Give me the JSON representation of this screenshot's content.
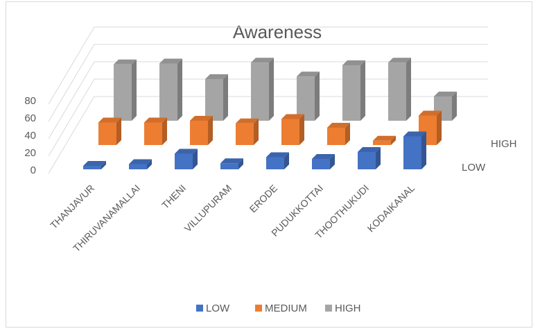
{
  "chart_data": {
    "type": "bar",
    "subtype": "3d-column",
    "title": "Awareness",
    "categories": [
      "THANJAVUR",
      "THIRUVANAMALLAI",
      "THENI",
      "VILLUPURAM",
      "ERODE",
      "PUDUKKOTTAI",
      "THOOTHUKUDI",
      "KODAIKANAL"
    ],
    "series": [
      {
        "name": "LOW",
        "color": "#4472C4",
        "values": [
          4,
          6,
          18,
          7,
          14,
          12,
          20,
          38
        ]
      },
      {
        "name": "MEDIUM",
        "color": "#ED7D31",
        "values": [
          26,
          26,
          28,
          25,
          30,
          20,
          5,
          34
        ]
      },
      {
        "name": "HIGH",
        "color": "#A5A5A5",
        "values": [
          65,
          66,
          48,
          67,
          51,
          64,
          67,
          28
        ]
      }
    ],
    "depth_labels": [
      "HIGH",
      "LOW"
    ],
    "y_ticks": [
      "0",
      "20",
      "40",
      "60",
      "80"
    ],
    "ylim": [
      0,
      80
    ],
    "grid": true,
    "legend_position": "bottom"
  }
}
